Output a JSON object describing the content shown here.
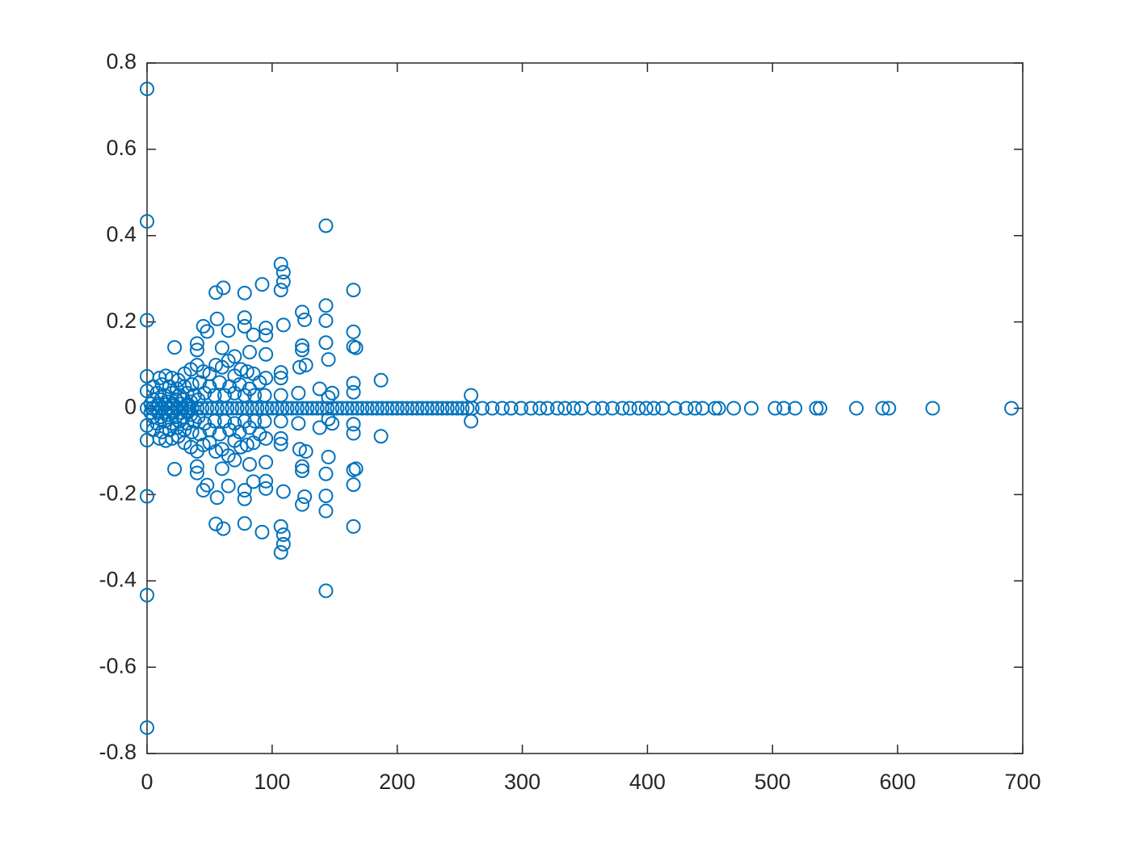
{
  "chart_data": {
    "type": "scatter",
    "color": "#0072bd",
    "x": [
      0,
      0,
      0,
      0,
      0,
      143,
      107,
      109,
      109,
      107,
      92,
      165,
      61,
      55,
      78,
      143,
      124,
      143,
      126,
      109,
      165,
      56,
      78,
      78,
      45,
      48,
      65,
      95,
      95,
      85,
      143,
      124,
      124,
      165,
      167,
      145,
      95,
      22,
      40,
      40,
      60,
      70,
      82,
      127,
      122,
      107,
      107,
      165,
      165,
      187,
      138,
      145,
      148,
      121,
      107,
      259,
      10,
      15,
      20,
      25,
      30,
      35,
      40,
      45,
      50,
      55,
      60,
      65,
      70,
      75,
      80,
      85,
      90,
      95,
      5,
      12,
      18,
      24,
      30,
      36,
      42,
      50,
      58,
      66,
      74,
      82,
      8,
      14,
      20,
      26,
      32,
      38,
      46,
      54,
      62,
      70,
      78,
      86,
      94,
      5,
      11,
      17,
      23,
      29,
      35,
      41,
      3,
      9,
      15,
      21,
      27,
      33,
      0,
      0,
      0,
      0,
      0,
      143,
      107,
      109,
      109,
      107,
      92,
      165,
      61,
      55,
      78,
      143,
      124,
      143,
      126,
      109,
      165,
      56,
      78,
      78,
      45,
      48,
      65,
      95,
      95,
      85,
      143,
      124,
      124,
      165,
      167,
      145,
      95,
      22,
      40,
      40,
      60,
      70,
      82,
      127,
      122,
      107,
      107,
      165,
      165,
      187,
      138,
      145,
      148,
      121,
      107,
      259,
      10,
      15,
      20,
      25,
      30,
      35,
      40,
      45,
      50,
      55,
      60,
      65,
      70,
      75,
      80,
      85,
      90,
      95,
      5,
      12,
      18,
      24,
      30,
      36,
      42,
      50,
      58,
      66,
      74,
      82,
      8,
      14,
      20,
      26,
      32,
      38,
      46,
      54,
      62,
      70,
      78,
      86,
      94,
      5,
      11,
      17,
      23,
      29,
      35,
      41,
      3,
      9,
      15,
      21,
      27,
      33,
      0,
      4,
      8,
      12,
      16,
      20,
      24,
      28,
      32,
      36,
      40,
      44,
      48,
      52,
      56,
      60,
      64,
      68,
      72,
      76,
      80,
      84,
      88,
      92,
      96,
      100,
      104,
      108,
      112,
      116,
      120,
      124,
      128,
      132,
      136,
      140,
      144,
      148,
      152,
      156,
      160,
      164,
      168,
      172,
      176,
      180,
      184,
      188,
      192,
      196,
      200,
      204,
      208,
      212,
      216,
      220,
      224,
      228,
      232,
      236,
      240,
      244,
      248,
      252,
      256,
      260,
      268,
      276,
      284,
      291,
      299,
      307,
      314,
      320,
      328,
      334,
      341,
      347,
      357,
      364,
      372,
      380,
      386,
      393,
      399,
      405,
      412,
      422,
      431,
      438,
      444,
      454,
      457,
      469,
      483,
      502,
      509,
      518,
      535,
      538,
      567,
      588,
      593,
      628,
      691
    ],
    "values": [
      0.74,
      0.433,
      0.204,
      0.074,
      0.04,
      0.423,
      0.334,
      0.315,
      0.293,
      0.274,
      0.287,
      0.274,
      0.279,
      0.268,
      0.267,
      0.238,
      0.223,
      0.203,
      0.205,
      0.193,
      0.177,
      0.207,
      0.21,
      0.19,
      0.19,
      0.178,
      0.18,
      0.186,
      0.169,
      0.17,
      0.152,
      0.145,
      0.135,
      0.143,
      0.14,
      0.113,
      0.125,
      0.141,
      0.15,
      0.135,
      0.14,
      0.12,
      0.13,
      0.1,
      0.095,
      0.083,
      0.07,
      0.058,
      0.037,
      0.065,
      0.045,
      0.025,
      0.035,
      0.035,
      0.03,
      0.03,
      0.07,
      0.075,
      0.07,
      0.065,
      0.08,
      0.09,
      0.1,
      0.085,
      0.08,
      0.1,
      0.095,
      0.11,
      0.075,
      0.09,
      0.085,
      0.08,
      0.06,
      0.07,
      0.05,
      0.055,
      0.05,
      0.045,
      0.05,
      0.055,
      0.06,
      0.05,
      0.06,
      0.05,
      0.055,
      0.045,
      0.035,
      0.03,
      0.035,
      0.03,
      0.035,
      0.03,
      0.035,
      0.03,
      0.03,
      0.035,
      0.03,
      0.03,
      0.03,
      0.02,
      0.02,
      0.015,
      0.02,
      0.02,
      0.015,
      0.02,
      0.01,
      0.01,
      0.008,
      0.01,
      0.01,
      0.008,
      -0.74,
      -0.433,
      -0.204,
      -0.074,
      -0.04,
      -0.423,
      -0.334,
      -0.315,
      -0.293,
      -0.274,
      -0.287,
      -0.274,
      -0.279,
      -0.268,
      -0.267,
      -0.238,
      -0.223,
      -0.203,
      -0.205,
      -0.193,
      -0.177,
      -0.207,
      -0.21,
      -0.19,
      -0.19,
      -0.178,
      -0.18,
      -0.186,
      -0.169,
      -0.17,
      -0.152,
      -0.145,
      -0.135,
      -0.143,
      -0.14,
      -0.113,
      -0.125,
      -0.141,
      -0.15,
      -0.135,
      -0.14,
      -0.12,
      -0.13,
      -0.1,
      -0.095,
      -0.083,
      -0.07,
      -0.058,
      -0.037,
      -0.065,
      -0.045,
      -0.025,
      -0.035,
      -0.035,
      -0.03,
      -0.03,
      -0.07,
      -0.075,
      -0.07,
      -0.065,
      -0.08,
      -0.09,
      -0.1,
      -0.085,
      -0.08,
      -0.1,
      -0.095,
      -0.11,
      -0.075,
      -0.09,
      -0.085,
      -0.08,
      -0.06,
      -0.07,
      -0.05,
      -0.055,
      -0.05,
      -0.045,
      -0.05,
      -0.055,
      -0.06,
      -0.05,
      -0.06,
      -0.05,
      -0.055,
      -0.045,
      -0.035,
      -0.03,
      -0.035,
      -0.03,
      -0.035,
      -0.03,
      -0.035,
      -0.03,
      -0.03,
      -0.035,
      -0.03,
      -0.03,
      -0.03,
      -0.02,
      -0.02,
      -0.015,
      -0.02,
      -0.02,
      -0.015,
      -0.02,
      -0.01,
      -0.01,
      -0.008,
      -0.01,
      -0.01,
      -0.008,
      0,
      0,
      0,
      0,
      0,
      0,
      0,
      0,
      0,
      0,
      0,
      0,
      0,
      0,
      0,
      0,
      0,
      0,
      0,
      0,
      0,
      0,
      0,
      0,
      0,
      0,
      0,
      0,
      0,
      0,
      0,
      0,
      0,
      0,
      0,
      0,
      0,
      0,
      0,
      0,
      0,
      0,
      0,
      0,
      0,
      0,
      0,
      0,
      0,
      0,
      0,
      0,
      0,
      0,
      0,
      0,
      0,
      0,
      0,
      0,
      0,
      0,
      0,
      0,
      0,
      0,
      0,
      0,
      0,
      0,
      0,
      0,
      0,
      0,
      0,
      0,
      0,
      0,
      0,
      0,
      0,
      0,
      0,
      0,
      0,
      0,
      0,
      0,
      0,
      0,
      0,
      0,
      0,
      0,
      0,
      0,
      0,
      0,
      0,
      0,
      0,
      0,
      0,
      0,
      0
    ],
    "xlim": [
      0,
      700
    ],
    "xticks": [
      0,
      100,
      200,
      300,
      400,
      500,
      600,
      700
    ],
    "ylim": [
      -0.8,
      0.8
    ],
    "yticks": [
      -0.8,
      -0.6,
      -0.4,
      -0.2,
      0,
      0.2,
      0.4,
      0.6,
      0.8
    ],
    "grid": false
  }
}
